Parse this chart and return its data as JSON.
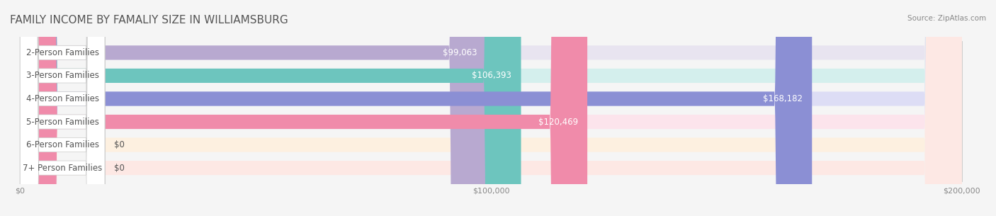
{
  "title": "FAMILY INCOME BY FAMALIY SIZE IN WILLIAMSBURG",
  "source": "Source: ZipAtlas.com",
  "categories": [
    "2-Person Families",
    "3-Person Families",
    "4-Person Families",
    "5-Person Families",
    "6-Person Families",
    "7+ Person Families"
  ],
  "values": [
    99063,
    106393,
    168182,
    120469,
    0,
    0
  ],
  "bar_colors": [
    "#b8a9d0",
    "#6dc5be",
    "#8b8fd4",
    "#f08baa",
    "#f5c99a",
    "#f0a898"
  ],
  "bg_colors": [
    "#e8e4f0",
    "#d4efed",
    "#ddddf5",
    "#fce4ec",
    "#fdf0e0",
    "#fde8e4"
  ],
  "value_labels": [
    "$99,063",
    "$106,393",
    "$168,182",
    "$120,469",
    "$0",
    "$0"
  ],
  "xmax": 200000,
  "xticks": [
    0,
    100000,
    200000
  ],
  "xtick_labels": [
    "$0",
    "$100,000",
    "$200,000"
  ],
  "background_color": "#f5f5f5",
  "title_fontsize": 11,
  "label_fontsize": 8.5,
  "value_fontsize": 8.5,
  "bar_height": 0.62,
  "label_inside_bar": true
}
